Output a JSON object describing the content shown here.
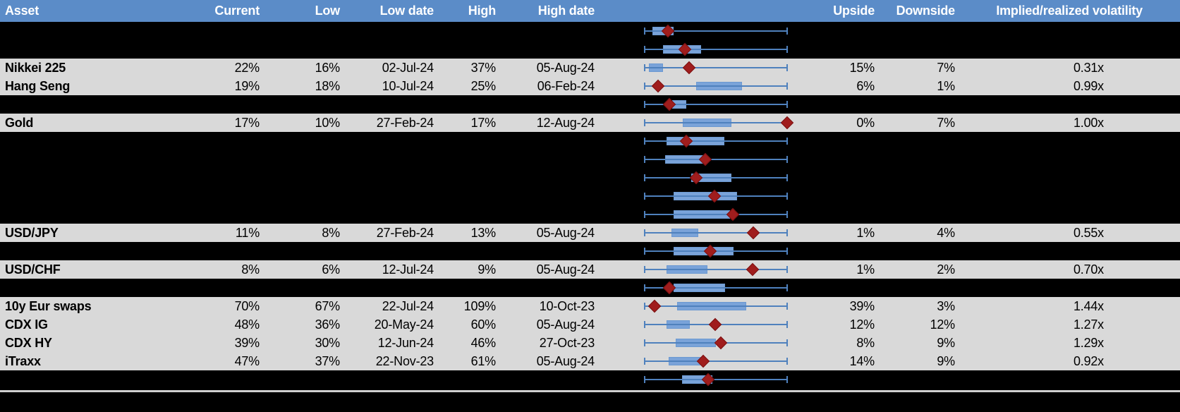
{
  "colors": {
    "header_bg": "#5b8cc8",
    "header_text": "#ffffff",
    "light_row_bg": "#d9d9d9",
    "dark_row_bg": "#000000",
    "whisker_blue": "#4f81bd",
    "box_blue": "#7aa3d9",
    "marker_dark_red": "#a01d1d",
    "separator_gray": "#cfcfcf"
  },
  "header": {
    "columns": [
      {
        "key": "asset",
        "label": "Asset"
      },
      {
        "key": "current",
        "label": "Current"
      },
      {
        "key": "low",
        "label": "Low"
      },
      {
        "key": "low_date",
        "label": "Low date"
      },
      {
        "key": "high",
        "label": "High"
      },
      {
        "key": "high_date",
        "label": "High date"
      },
      {
        "key": "chart",
        "label": ""
      },
      {
        "key": "upside",
        "label": "Upside"
      },
      {
        "key": "downside",
        "label": "Downside"
      },
      {
        "key": "vol",
        "label": "Implied/realized volatility"
      }
    ]
  },
  "chart_data": {
    "type": "table",
    "title": "Implied volatility ranges with box-whisker plots (diamond = current level)",
    "columns": [
      "Asset",
      "Current",
      "Low",
      "Low date",
      "High",
      "High date",
      "Upside",
      "Downside",
      "Implied/realized volatility"
    ],
    "box_plot": {
      "whisker_range": "low-to-high of each asset's implied volatility",
      "marker": "current level (dark red diamond)",
      "box": "middle range (blue bar)",
      "fractions_note": "lo/hi/marker are fractions 0-1 along the whisker from left cap to right cap"
    },
    "rows": [
      {
        "band": "dark",
        "asset": null,
        "current": null,
        "low": null,
        "low_date": null,
        "high": null,
        "high_date": null,
        "upside": null,
        "downside": null,
        "vol": null,
        "box": {
          "lo": 0.059,
          "hi": 0.206,
          "marker": 0.167
        }
      },
      {
        "band": "dark",
        "asset": null,
        "current": null,
        "low": null,
        "low_date": null,
        "high": null,
        "high_date": null,
        "upside": null,
        "downside": null,
        "vol": null,
        "box": {
          "lo": 0.132,
          "hi": 0.397,
          "marker": 0.284
        }
      },
      {
        "band": "light",
        "asset": "Nikkei 225",
        "current": "22%",
        "low": "16%",
        "low_date": "02-Jul-24",
        "high": "37%",
        "high_date": "05-Aug-24",
        "upside": "15%",
        "downside": "7%",
        "vol": "0.31x",
        "box": {
          "lo": 0.034,
          "hi": 0.132,
          "marker": 0.314
        }
      },
      {
        "band": "light",
        "asset": "Hang Seng",
        "current": "19%",
        "low": "18%",
        "low_date": "10-Jul-24",
        "high": "25%",
        "high_date": "06-Feb-24",
        "upside": "6%",
        "downside": "1%",
        "vol": "0.99x",
        "box": {
          "lo": 0.363,
          "hi": 0.681,
          "marker": 0.098
        }
      },
      {
        "band": "dark",
        "asset": null,
        "current": null,
        "low": null,
        "low_date": null,
        "high": null,
        "high_date": null,
        "upside": null,
        "downside": null,
        "vol": null,
        "box": {
          "lo": 0.196,
          "hi": 0.294,
          "marker": 0.176
        }
      },
      {
        "band": "light",
        "asset": "Gold",
        "current": "17%",
        "low": "10%",
        "low_date": "27-Feb-24",
        "high": "17%",
        "high_date": "12-Aug-24",
        "upside": "0%",
        "downside": "7%",
        "vol": "1.00x",
        "box": {
          "lo": 0.27,
          "hi": 0.608,
          "marker": 0.995
        }
      },
      {
        "band": "dark",
        "asset": null,
        "current": null,
        "low": null,
        "low_date": null,
        "high": null,
        "high_date": null,
        "upside": null,
        "downside": null,
        "vol": null,
        "box": {
          "lo": 0.157,
          "hi": 0.559,
          "marker": 0.294
        }
      },
      {
        "band": "dark",
        "asset": null,
        "current": null,
        "low": null,
        "low_date": null,
        "high": null,
        "high_date": null,
        "upside": null,
        "downside": null,
        "vol": null,
        "box": {
          "lo": 0.147,
          "hi": 0.417,
          "marker": 0.427
        }
      },
      {
        "band": "dark",
        "asset": null,
        "current": null,
        "low": null,
        "low_date": null,
        "high": null,
        "high_date": null,
        "upside": null,
        "downside": null,
        "vol": null,
        "box": {
          "lo": 0.328,
          "hi": 0.608,
          "marker": 0.363
        }
      },
      {
        "band": "dark",
        "asset": null,
        "current": null,
        "low": null,
        "low_date": null,
        "high": null,
        "high_date": null,
        "upside": null,
        "downside": null,
        "vol": null,
        "box": {
          "lo": 0.206,
          "hi": 0.647,
          "marker": 0.49
        }
      },
      {
        "band": "dark",
        "asset": null,
        "current": null,
        "low": null,
        "low_date": null,
        "high": null,
        "high_date": null,
        "upside": null,
        "downside": null,
        "vol": null,
        "box": {
          "lo": 0.206,
          "hi": 0.598,
          "marker": 0.618
        }
      },
      {
        "band": "light",
        "asset": "USD/JPY",
        "current": "11%",
        "low": "8%",
        "low_date": "27-Feb-24",
        "high": "13%",
        "high_date": "05-Aug-24",
        "upside": "1%",
        "downside": "4%",
        "vol": "0.55x",
        "box": {
          "lo": 0.191,
          "hi": 0.377,
          "marker": 0.76
        }
      },
      {
        "band": "dark",
        "asset": null,
        "current": null,
        "low": null,
        "low_date": null,
        "high": null,
        "high_date": null,
        "upside": null,
        "downside": null,
        "vol": null,
        "box": {
          "lo": 0.206,
          "hi": 0.623,
          "marker": 0.461
        }
      },
      {
        "band": "light",
        "asset": "USD/CHF",
        "current": "8%",
        "low": "6%",
        "low_date": "12-Jul-24",
        "high": "9%",
        "high_date": "05-Aug-24",
        "upside": "1%",
        "downside": "2%",
        "vol": "0.70x",
        "box": {
          "lo": 0.157,
          "hi": 0.441,
          "marker": 0.755
        }
      },
      {
        "band": "dark",
        "asset": null,
        "current": null,
        "low": null,
        "low_date": null,
        "high": null,
        "high_date": null,
        "upside": null,
        "downside": null,
        "vol": null,
        "box": {
          "lo": 0.206,
          "hi": 0.564,
          "marker": 0.176
        }
      },
      {
        "band": "light",
        "asset": "10y Eur swaps",
        "current": "70%",
        "low": "67%",
        "low_date": "22-Jul-24",
        "high": "109%",
        "high_date": "10-Oct-23",
        "upside": "39%",
        "downside": "3%",
        "vol": "1.44x",
        "box": {
          "lo": 0.23,
          "hi": 0.711,
          "marker": 0.074
        }
      },
      {
        "band": "light",
        "asset": "CDX IG",
        "current": "48%",
        "low": "36%",
        "low_date": "20-May-24",
        "high": "60%",
        "high_date": "05-Aug-24",
        "upside": "12%",
        "downside": "12%",
        "vol": "1.27x",
        "box": {
          "lo": 0.157,
          "hi": 0.319,
          "marker": 0.495
        }
      },
      {
        "band": "light",
        "asset": "CDX HY",
        "current": "39%",
        "low": "30%",
        "low_date": "12-Jun-24",
        "high": "46%",
        "high_date": "27-Oct-23",
        "upside": "8%",
        "downside": "9%",
        "vol": "1.29x",
        "box": {
          "lo": 0.221,
          "hi": 0.5,
          "marker": 0.534
        }
      },
      {
        "band": "light",
        "asset": "iTraxx",
        "current": "47%",
        "low": "37%",
        "low_date": "22-Nov-23",
        "high": "61%",
        "high_date": "05-Aug-24",
        "upside": "14%",
        "downside": "9%",
        "vol": "0.92x",
        "box": {
          "lo": 0.172,
          "hi": 0.402,
          "marker": 0.412
        }
      },
      {
        "band": "dark",
        "asset": null,
        "current": null,
        "low": null,
        "low_date": null,
        "high": null,
        "high_date": null,
        "upside": null,
        "downside": null,
        "vol": null,
        "box": {
          "lo": 0.265,
          "hi": 0.476,
          "marker": 0.446
        }
      }
    ]
  }
}
